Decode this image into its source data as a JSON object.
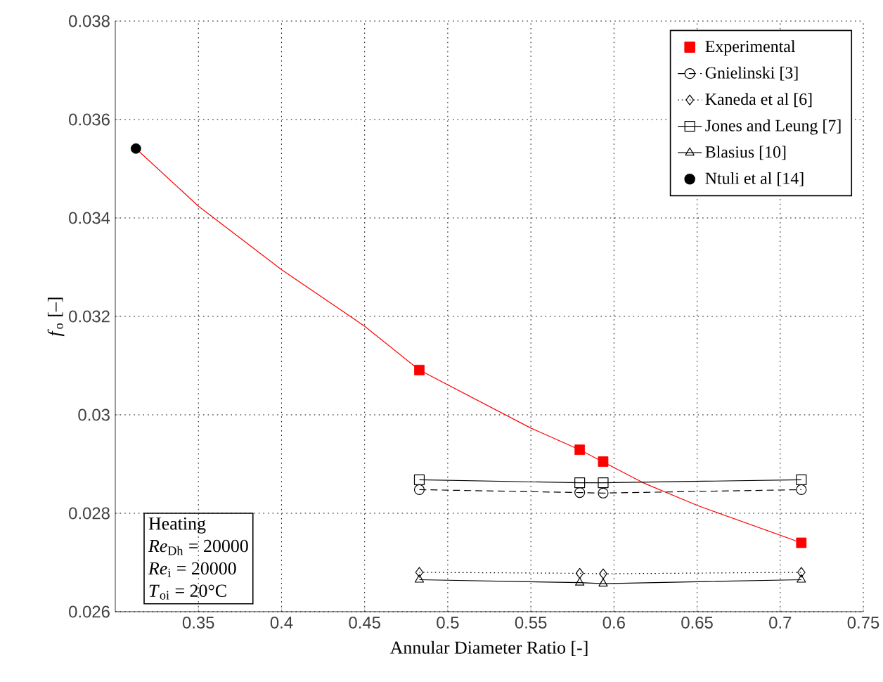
{
  "chart_data": {
    "type": "line",
    "xlabel": "Annular Diameter Ratio [-]",
    "ylabel": "*f*$_{o}$ [–]",
    "xlim": [
      0.3,
      0.75
    ],
    "ylim": [
      0.026,
      0.038
    ],
    "xticks": [
      0.35,
      0.4,
      0.45,
      0.5,
      0.55,
      0.6,
      0.65,
      0.7,
      0.75
    ],
    "yticks": [
      0.026,
      0.028,
      0.03,
      0.032,
      0.034,
      0.036,
      0.038
    ],
    "grid": true,
    "legend": "top right",
    "series": [
      {
        "color": "#ff0000",
        "marker": "none",
        "line_style": "solid",
        "x": [
          0.3124,
          0.35,
          0.4,
          0.45,
          0.4829,
          0.55,
          0.5794,
          0.6175,
          0.65,
          0.7127
        ],
        "values": [
          0.03541,
          0.03424,
          0.03295,
          0.0318,
          0.03091,
          0.02973,
          0.02929,
          0.02862,
          0.02816,
          0.0274
        ]
      },
      {
        "name": "Experimental",
        "type": "scatter",
        "color": "#ff0000",
        "marker": "square",
        "x": [
          0.4829,
          0.5794,
          0.5935,
          0.7127
        ],
        "values": [
          0.03091,
          0.02929,
          0.02905,
          0.0274
        ]
      },
      {
        "name": "Gnielinski [3]",
        "type": "line",
        "color": "#000000",
        "marker": "circle",
        "line_style": "dashed",
        "x": [
          0.4829,
          0.5794,
          0.5935,
          0.7127
        ],
        "values": [
          0.02848,
          0.02842,
          0.02841,
          0.02848
        ]
      },
      {
        "name": "Kaneda et al [6]",
        "type": "line",
        "color": "#000000",
        "marker": "diamond",
        "line_style": "dotted",
        "x": [
          0.4829,
          0.5794,
          0.5935,
          0.7127
        ],
        "values": [
          0.0268,
          0.02678,
          0.02677,
          0.0268
        ]
      },
      {
        "name": "Jones and Leung [7]",
        "type": "line",
        "color": "#000000",
        "marker": "square",
        "line_style": "solid",
        "x": [
          0.4829,
          0.5794,
          0.5935,
          0.7127
        ],
        "values": [
          0.02868,
          0.02862,
          0.02862,
          0.02868
        ]
      },
      {
        "name": "Blasius [10]",
        "type": "line",
        "color": "#000000",
        "marker": "triangle",
        "line_style": "solid",
        "x": [
          0.4829,
          0.5794,
          0.5935,
          0.7127
        ],
        "values": [
          0.02665,
          0.02659,
          0.02657,
          0.02665
        ]
      },
      {
        "name": "Ntuli et al [14]",
        "type": "scatter",
        "color": "#000000",
        "marker": "circle",
        "x": [
          0.3124
        ],
        "values": [
          0.03541
        ]
      }
    ],
    "annotations": [
      "Heating",
      "*Re*$_{Dh}$ = 20000",
      "*Re*$_{i}$ = 20000",
      "*T*$_{oi}$ = 20°C"
    ]
  }
}
